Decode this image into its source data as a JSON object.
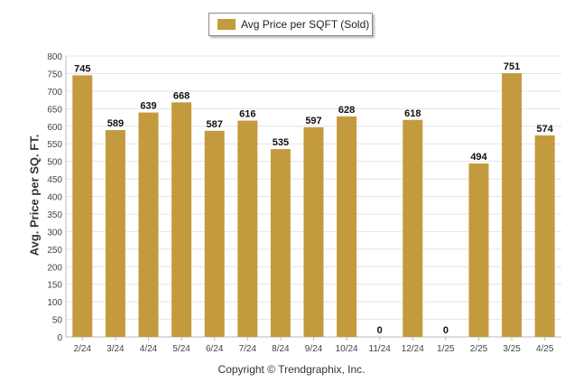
{
  "chart_data": {
    "type": "bar",
    "categories": [
      "2/24",
      "3/24",
      "4/24",
      "5/24",
      "6/24",
      "7/24",
      "8/24",
      "9/24",
      "10/24",
      "11/24",
      "12/24",
      "1/25",
      "2/25",
      "3/25",
      "4/25"
    ],
    "series": [
      {
        "name": "Avg Price per SQFT (Sold)",
        "values": [
          745,
          589,
          639,
          668,
          587,
          616,
          535,
          597,
          628,
          0,
          618,
          0,
          494,
          751,
          574
        ]
      }
    ],
    "ylabel": "Avg. Price per SQ. FT.",
    "xlabel": "",
    "ylim": [
      0,
      800
    ],
    "yticks": [
      0,
      50,
      100,
      150,
      200,
      250,
      300,
      350,
      400,
      450,
      500,
      550,
      600,
      650,
      700,
      750,
      800
    ],
    "grid": true,
    "legend": "top-center",
    "bar_color": "#c49a3e",
    "data_labels": true
  },
  "footer": "Copyright © Trendgraphix, Inc."
}
